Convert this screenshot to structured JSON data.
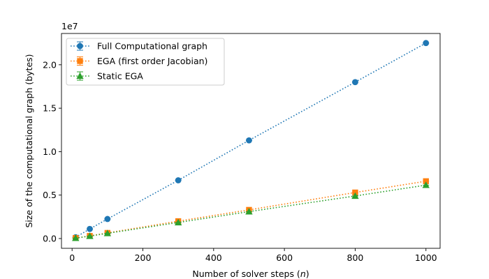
{
  "chart_data": {
    "type": "line",
    "xlabel_main": "Number of solver steps (",
    "xlabel_var": "n",
    "xlabel_end": ")",
    "ylabel": "Size of the computational graph (bytes)",
    "y_offset_text": "1e7",
    "xlim": [
      -30,
      1040
    ],
    "ylim": [
      -1125000,
      23600000
    ],
    "xticks": [
      0,
      200,
      400,
      600,
      800,
      1000
    ],
    "xtick_labels": [
      "0",
      "200",
      "400",
      "600",
      "800",
      "1000"
    ],
    "yticks": [
      0,
      5000000,
      10000000,
      15000000,
      20000000
    ],
    "ytick_labels": [
      "0.0",
      "0.5",
      "1.0",
      "1.5",
      "2.0"
    ],
    "grid": false,
    "legend_position": "top-left",
    "x": [
      10,
      50,
      100,
      300,
      500,
      800,
      1000
    ],
    "series": [
      {
        "name": "Full Computational graph",
        "color": "#1f77b4",
        "marker": "circle",
        "values": [
          150000,
          1100000,
          2250000,
          6700000,
          11300000,
          18000000,
          22500000
        ]
      },
      {
        "name": "EGA (first order Jacobian)",
        "color": "#ff7f0e",
        "marker": "square",
        "values": [
          60000,
          300000,
          650000,
          2000000,
          3300000,
          5300000,
          6600000
        ]
      },
      {
        "name": "Static EGA",
        "color": "#2ca02c",
        "marker": "triangle",
        "values": [
          50000,
          280000,
          600000,
          1850000,
          3100000,
          4900000,
          6150000
        ]
      }
    ]
  }
}
